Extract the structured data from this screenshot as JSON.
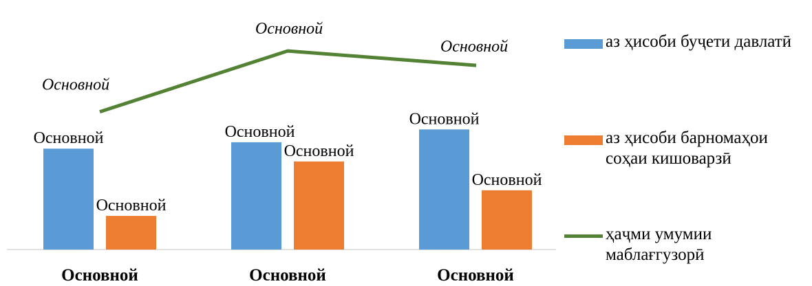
{
  "chart_data": {
    "type": "bar",
    "categories": [
      "Основной",
      "Основной",
      "Основной"
    ],
    "series": [
      {
        "name": "аз ҳисоби буҷети давлатӣ",
        "kind": "bar",
        "color": "#5B9BD5",
        "values": [
          63,
          67,
          75
        ],
        "data_labels": [
          "Основной",
          "Основной",
          "Основной"
        ]
      },
      {
        "name": "аз ҳисоби барномаҳои соҳаи кишоварзӣ",
        "kind": "bar",
        "color": "#ED7D31",
        "values": [
          21,
          55,
          37
        ],
        "data_labels": [
          "Основной",
          "Основной",
          "Основной"
        ]
      },
      {
        "name": "ҳаҷми умумии маблағгузорӣ",
        "kind": "line",
        "color": "#548235",
        "values": [
          86,
          124,
          115
        ],
        "data_labels": [
          "Основной",
          "Основной",
          "Основной"
        ]
      }
    ],
    "ylim": [
      0,
      140
    ],
    "grid": false,
    "legend_position": "right"
  }
}
